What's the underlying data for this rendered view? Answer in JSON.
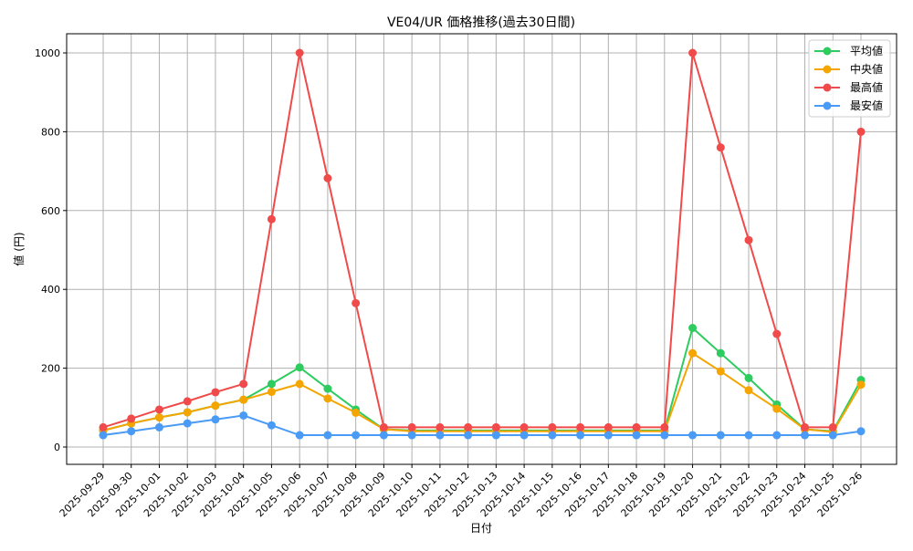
{
  "chart_data": {
    "type": "line",
    "title": "VE04/UR 価格推移(過去30日間)",
    "xlabel": "日付",
    "ylabel": "値 (円)",
    "ylim": [
      0,
      1050
    ],
    "yticks": [
      0,
      200,
      400,
      600,
      800,
      1000
    ],
    "grid": true,
    "legend_position": "upper right",
    "categories": [
      "2025-09-29",
      "2025-09-30",
      "2025-10-01",
      "2025-10-02",
      "2025-10-03",
      "2025-10-04",
      "2025-10-05",
      "2025-10-06",
      "2025-10-07",
      "2025-10-08",
      "2025-10-09",
      "2025-10-10",
      "2025-10-11",
      "2025-10-12",
      "2025-10-13",
      "2025-10-14",
      "2025-10-15",
      "2025-10-16",
      "2025-10-17",
      "2025-10-18",
      "2025-10-19",
      "2025-10-20",
      "2025-10-21",
      "2025-10-22",
      "2025-10-23",
      "2025-10-24",
      "2025-10-25",
      "2025-10-26"
    ],
    "series": [
      {
        "name": "平均値",
        "color": "#2ecc5f",
        "values": [
          42,
          60,
          75,
          88,
          105,
          120,
          160,
          202,
          148,
          95,
          45,
          42,
          42,
          42,
          42,
          42,
          42,
          42,
          42,
          42,
          42,
          302,
          238,
          175,
          108,
          45,
          40,
          170
        ]
      },
      {
        "name": "中央値",
        "color": "#f5a500",
        "values": [
          42,
          60,
          75,
          88,
          105,
          120,
          140,
          160,
          123,
          87,
          45,
          40,
          40,
          40,
          40,
          40,
          40,
          40,
          40,
          40,
          40,
          238,
          192,
          144,
          97,
          45,
          38,
          158
        ]
      },
      {
        "name": "最高値",
        "color": "#f04a4a",
        "values": [
          50,
          72,
          95,
          116,
          139,
          160,
          578,
          1000,
          682,
          365,
          50,
          50,
          50,
          50,
          50,
          50,
          50,
          50,
          50,
          50,
          50,
          1000,
          760,
          525,
          287,
          50,
          50,
          800
        ]
      },
      {
        "name": "最安値",
        "color": "#4a9bf5",
        "values": [
          30,
          40,
          50,
          60,
          70,
          80,
          55,
          30,
          30,
          30,
          30,
          30,
          30,
          30,
          30,
          30,
          30,
          30,
          30,
          30,
          30,
          30,
          30,
          30,
          30,
          30,
          30,
          40
        ]
      }
    ]
  }
}
